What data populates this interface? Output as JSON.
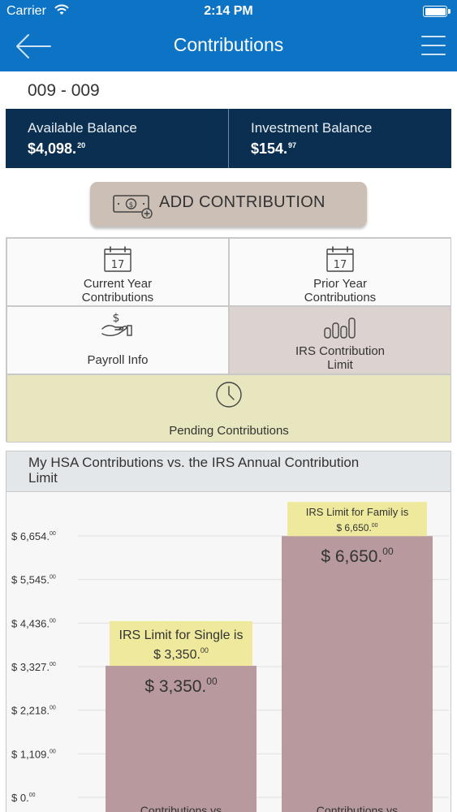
{
  "status_bar": {
    "carrier": "Carrier",
    "time": "2:14 PM"
  },
  "nav": {
    "title": "Contributions"
  },
  "account": {
    "id": "009 - 009"
  },
  "balances": {
    "available": {
      "label": "Available Balance",
      "value": "$4,098.",
      "cents": "20"
    },
    "investment": {
      "label": "Investment Balance",
      "value": "$154.",
      "cents": "97"
    }
  },
  "add_contribution": {
    "label": "ADD CONTRIBUTION"
  },
  "tiles": {
    "current_year": {
      "line1": "Current Year",
      "line2": "Contributions",
      "icon_text": "17"
    },
    "prior_year": {
      "line1": "Prior Year",
      "line2": "Contributions",
      "icon_text": "17"
    },
    "payroll": {
      "label": "Payroll Info"
    },
    "irs_limit": {
      "line1": "IRS Contribution",
      "line2": "Limit"
    },
    "pending": {
      "label": "Pending Contributions"
    }
  },
  "colors": {
    "nav_blue": "#0d74c5",
    "balance_navy": "#0b2f50",
    "bar": "#b89a9e",
    "limit_tag": "#eee99c",
    "selected_tile": "#dcd3d0",
    "pending_tile": "#e7e6bf"
  },
  "chart_data": {
    "type": "bar",
    "title": "My HSA Contributions vs. the IRS Annual Contribution Limit",
    "y_ticks": [
      {
        "value": 0,
        "label": "$ 0.",
        "cents": "00"
      },
      {
        "value": 1109,
        "label": "$ 1,109.",
        "cents": "00"
      },
      {
        "value": 2218,
        "label": "$ 2,218.",
        "cents": "00"
      },
      {
        "value": 3327,
        "label": "$ 3,327.",
        "cents": "00"
      },
      {
        "value": 4436,
        "label": "$ 4,436.",
        "cents": "00"
      },
      {
        "value": 5545,
        "label": "$ 5,545.",
        "cents": "00"
      },
      {
        "value": 6654,
        "label": "$ 6,654.",
        "cents": "00"
      }
    ],
    "ylim": [
      0,
      6654
    ],
    "categories": [
      "Contributions vs",
      "Contributions vs"
    ],
    "values": [
      3350,
      6650
    ],
    "value_labels": [
      {
        "main": "$ 3,350.",
        "cents": "00"
      },
      {
        "main": "$ 6,650.",
        "cents": "00"
      }
    ],
    "annotations": [
      {
        "line1": "IRS Limit for Single is",
        "line2": "$ 3,350.",
        "cents": "00"
      },
      {
        "line1": "IRS Limit for Family is",
        "line2": "$ 6,650.",
        "cents": "00"
      }
    ]
  }
}
